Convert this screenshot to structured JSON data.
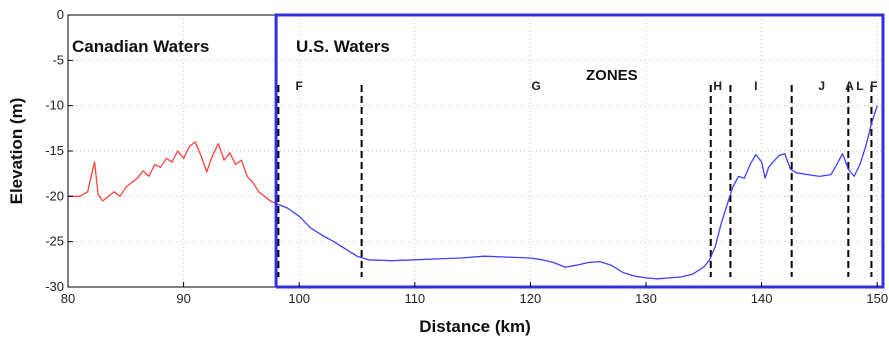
{
  "chart_data": {
    "type": "line",
    "xlabel": "Distance (km)",
    "ylabel": "Elevation (m)",
    "xlim": [
      80,
      150.5
    ],
    "ylim": [
      -30,
      0
    ],
    "x_ticks": [
      "80",
      "90",
      "100",
      "110",
      "120",
      "130",
      "140",
      "150"
    ],
    "y_ticks": [
      "0",
      "-5",
      "-10",
      "-15",
      "-20",
      "-25",
      "-30"
    ],
    "grid": true,
    "regions": [
      {
        "label": "Canadian Waters"
      },
      {
        "label": "U.S. Waters"
      }
    ],
    "zones_title": "ZONES",
    "zones": [
      {
        "label": "F",
        "x": 100
      },
      {
        "label": "G",
        "x": 120.5
      },
      {
        "label": "H",
        "x": 136.2
      },
      {
        "label": "I",
        "x": 139.5
      },
      {
        "label": "J",
        "x": 145.2
      },
      {
        "label": "A",
        "x": 147.6
      },
      {
        "label": "L",
        "x": 148.5
      },
      {
        "label": "F",
        "x": 149.7
      }
    ],
    "zone_boundaries": [
      98.2,
      105.4,
      135.6,
      137.3,
      142.6,
      147.5,
      149.5
    ],
    "border_x": 98,
    "series": [
      {
        "color": "#ff4040",
        "points": [
          [
            80,
            -20
          ],
          [
            81,
            -20
          ],
          [
            81.7,
            -19.5
          ],
          [
            82,
            -17.8
          ],
          [
            82.3,
            -16.2
          ],
          [
            82.6,
            -19.8
          ],
          [
            83,
            -20.5
          ],
          [
            83.5,
            -20
          ],
          [
            84,
            -19.5
          ],
          [
            84.5,
            -20
          ],
          [
            85,
            -19
          ],
          [
            85.5,
            -18.5
          ],
          [
            86,
            -18
          ],
          [
            86.5,
            -17.2
          ],
          [
            87,
            -17.8
          ],
          [
            87.5,
            -16.5
          ],
          [
            88,
            -16.8
          ],
          [
            88.5,
            -15.8
          ],
          [
            89,
            -16.2
          ],
          [
            89.5,
            -15
          ],
          [
            90,
            -15.8
          ],
          [
            90.5,
            -14.5
          ],
          [
            91,
            -14
          ],
          [
            91.5,
            -15.5
          ],
          [
            92,
            -17.3
          ],
          [
            92.5,
            -15.5
          ],
          [
            93,
            -14.2
          ],
          [
            93.5,
            -16
          ],
          [
            94,
            -15.2
          ],
          [
            94.5,
            -16.5
          ],
          [
            95,
            -16
          ],
          [
            95.5,
            -17.8
          ],
          [
            96,
            -18.5
          ],
          [
            96.5,
            -19.5
          ],
          [
            97,
            -20
          ],
          [
            97.5,
            -20.5
          ],
          [
            98,
            -20.8
          ]
        ]
      },
      {
        "color": "#4040ff",
        "points": [
          [
            98,
            -20.8
          ],
          [
            99,
            -21.3
          ],
          [
            100,
            -22.2
          ],
          [
            101,
            -23.5
          ],
          [
            102,
            -24.3
          ],
          [
            103,
            -25
          ],
          [
            104,
            -25.8
          ],
          [
            105,
            -26.6
          ],
          [
            106,
            -27
          ],
          [
            108,
            -27.1
          ],
          [
            110,
            -27
          ],
          [
            112,
            -26.9
          ],
          [
            114,
            -26.8
          ],
          [
            116,
            -26.6
          ],
          [
            118,
            -26.7
          ],
          [
            120,
            -26.8
          ],
          [
            121,
            -27
          ],
          [
            122,
            -27.3
          ],
          [
            123,
            -27.8
          ],
          [
            124,
            -27.6
          ],
          [
            125,
            -27.3
          ],
          [
            126,
            -27.2
          ],
          [
            127,
            -27.6
          ],
          [
            128,
            -28.4
          ],
          [
            129,
            -28.8
          ],
          [
            130,
            -29
          ],
          [
            131,
            -29.1
          ],
          [
            132,
            -29
          ],
          [
            133,
            -28.9
          ],
          [
            134,
            -28.6
          ],
          [
            135,
            -27.8
          ],
          [
            135.5,
            -27
          ],
          [
            136,
            -25.5
          ],
          [
            136.5,
            -23
          ],
          [
            137,
            -21
          ],
          [
            137.5,
            -19
          ],
          [
            138,
            -17.8
          ],
          [
            138.5,
            -18
          ],
          [
            139,
            -16.5
          ],
          [
            139.5,
            -15.4
          ],
          [
            140,
            -16.2
          ],
          [
            140.3,
            -18
          ],
          [
            140.6,
            -16.8
          ],
          [
            141,
            -16.2
          ],
          [
            141.5,
            -15.5
          ],
          [
            142,
            -15.3
          ],
          [
            142.5,
            -17
          ],
          [
            143,
            -17.4
          ],
          [
            144,
            -17.6
          ],
          [
            145,
            -17.8
          ],
          [
            146,
            -17.6
          ],
          [
            146.5,
            -16.5
          ],
          [
            147,
            -15.3
          ],
          [
            147.5,
            -17
          ],
          [
            148,
            -17.8
          ],
          [
            148.5,
            -16.5
          ],
          [
            149,
            -14.5
          ],
          [
            149.5,
            -12
          ],
          [
            150,
            -10
          ]
        ]
      }
    ]
  }
}
